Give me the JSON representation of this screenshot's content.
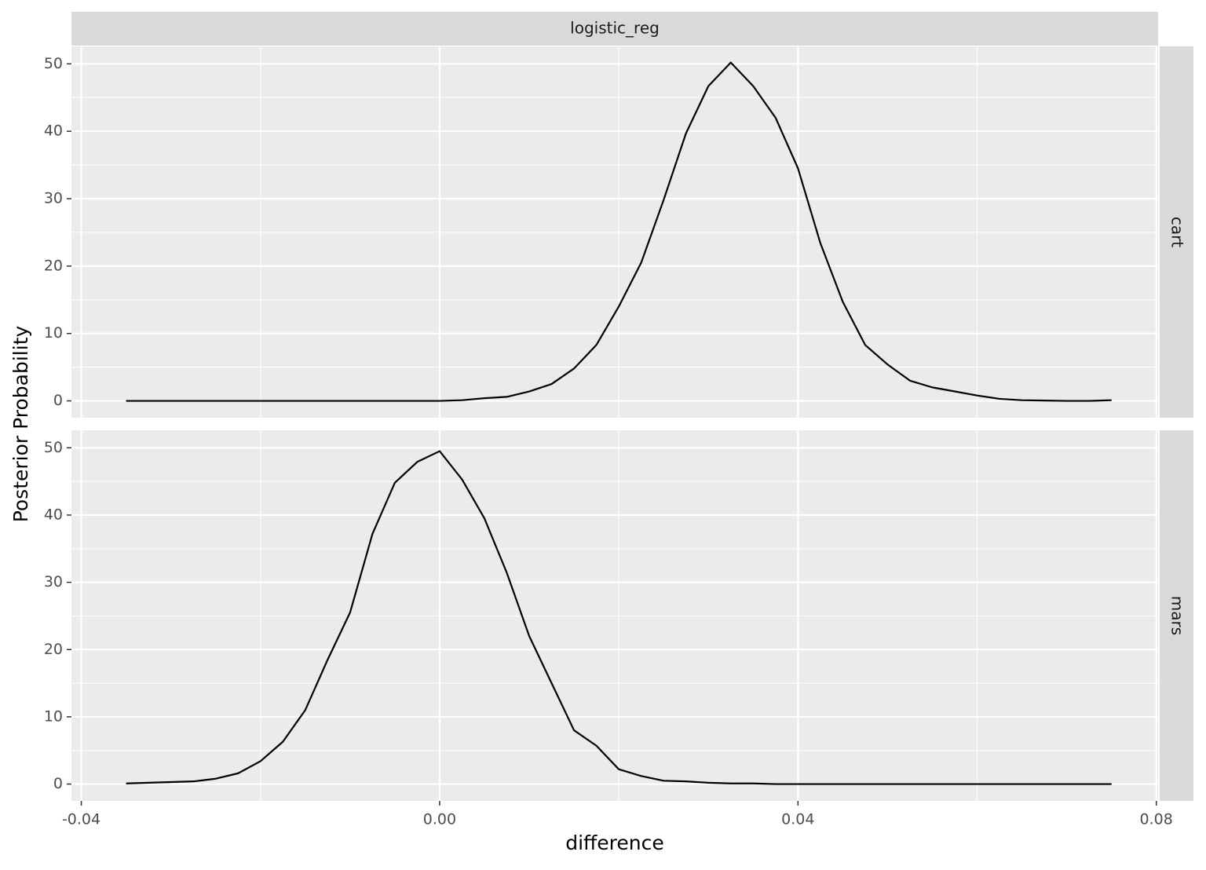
{
  "chart_data": {
    "type": "line",
    "column_facet": "logistic_reg",
    "x_label": "difference",
    "y_label": "Posterior Probability",
    "color": "#000000",
    "grid": true,
    "xlim": [
      -0.0411,
      0.0802
    ],
    "xticks": [
      -0.04,
      {
        "value": 0,
        "label": "0.00"
      },
      0.04,
      0.08
    ],
    "ylim": [
      -2.5,
      52.6
    ],
    "yticks": [
      0,
      10,
      20,
      30,
      40,
      50
    ],
    "x": [
      -0.035,
      -0.0325,
      -0.03,
      -0.0275,
      -0.025,
      -0.0225,
      -0.02,
      -0.0175,
      -0.015,
      -0.0125,
      -0.01,
      -0.0075,
      -0.005,
      -0.0025,
      0,
      0.0025,
      0.005,
      0.0075,
      0.01,
      0.0125,
      0.015,
      0.0175,
      0.02,
      0.0225,
      0.025,
      0.0275,
      0.03,
      0.0325,
      0.035,
      0.0375,
      0.04,
      0.0425,
      0.045,
      0.0475,
      0.05,
      0.0525,
      0.055,
      0.0575,
      0.06,
      0.0625,
      0.065,
      0.0675,
      0.07,
      0.0725,
      0.075
    ],
    "panels": [
      {
        "label": "cart",
        "values": [
          0,
          0,
          0,
          0,
          0,
          0,
          0,
          0,
          0,
          0,
          0,
          0,
          0,
          0,
          0,
          0.1,
          0.4,
          0.6,
          1.4,
          2.5,
          4.8,
          8.3,
          14,
          20.5,
          29.8,
          39.7,
          46.7,
          50.2,
          46.7,
          42,
          34.5,
          23.4,
          14.7,
          8.3,
          5.4,
          3,
          2,
          1.4,
          0.8,
          0.3,
          0.1,
          0.05,
          0,
          0,
          0.1
        ]
      },
      {
        "label": "mars",
        "values": [
          0.1,
          0.2,
          0.3,
          0.4,
          0.8,
          1.6,
          3.4,
          6.3,
          11,
          18.5,
          25.5,
          37.2,
          44.8,
          47.9,
          49.5,
          45.3,
          39.5,
          31.4,
          22,
          15,
          8,
          5.7,
          2.2,
          1.2,
          0.5,
          0.4,
          0.2,
          0.1,
          0.1,
          0,
          0,
          0,
          0,
          0,
          0,
          0,
          0,
          0,
          0,
          0,
          0,
          0,
          0,
          0,
          0
        ]
      }
    ]
  }
}
